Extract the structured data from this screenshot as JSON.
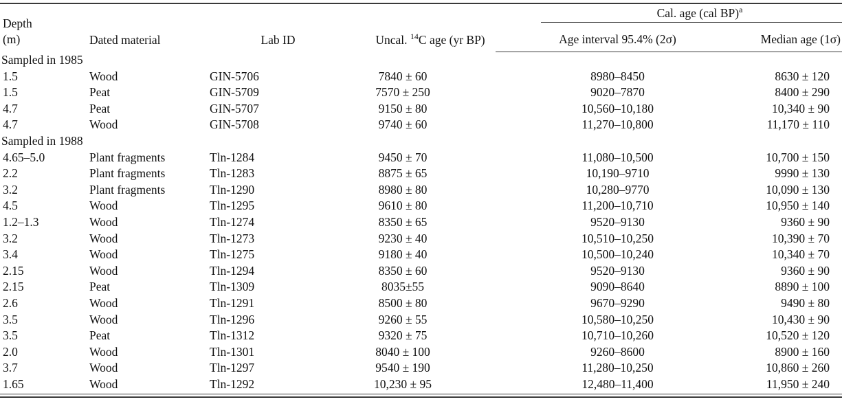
{
  "table": {
    "columns": {
      "depth": {
        "line1": "Depth",
        "line2": "(m)"
      },
      "material": "Dated material",
      "lab_id": "Lab ID",
      "uncal": {
        "pre": "Uncal. ",
        "sup": "14",
        "post": "C age (yr BP)"
      },
      "cal_group": {
        "text": "Cal. age (cal BP)",
        "sup": "a"
      },
      "interval": "Age interval 95.4% (2σ)",
      "median": "Median age (1σ)"
    },
    "sections": [
      {
        "label": "Sampled in 1985",
        "rows": [
          [
            "1.5",
            "Wood",
            "GIN-5706",
            "7840 ± 60",
            "8980–8450",
            "8630 ± 120"
          ],
          [
            "1.5",
            "Peat",
            "GIN-5709",
            "7570 ± 250",
            "9020–7870",
            "8400 ± 290"
          ],
          [
            "4.7",
            "Peat",
            "GIN-5707",
            "9150 ± 80",
            "10,560–10,180",
            "10,340 ± 90"
          ],
          [
            "4.7",
            "Wood",
            "GIN-5708",
            "9740 ± 60",
            "11,270–10,800",
            "11,170 ± 110"
          ]
        ]
      },
      {
        "label": "Sampled in 1988",
        "rows": [
          [
            "4.65–5.0",
            "Plant fragments",
            "Tln-1284",
            "9450 ± 70",
            "11,080–10,500",
            "10,700 ± 150"
          ],
          [
            "2.2",
            "Plant fragments",
            "Tln-1283",
            "8875 ± 65",
            "10,190–9710",
            "9990 ± 130"
          ],
          [
            "3.2",
            "Plant fragments",
            "Tln-1290",
            "8980 ± 80",
            "10,280–9770",
            "10,090 ± 130"
          ],
          [
            "4.5",
            "Wood",
            "Tln-1295",
            "9610 ± 80",
            "11,200–10,710",
            "10,950 ± 140"
          ],
          [
            "1.2–1.3",
            "Wood",
            "Tln-1274",
            "8350 ± 65",
            "9520–9130",
            "9360 ± 90"
          ],
          [
            "3.2",
            "Wood",
            "Tln-1273",
            "9230 ± 40",
            "10,510–10,250",
            "10,390 ± 70"
          ],
          [
            "3.4",
            "Wood",
            "Tln-1275",
            "9180 ± 40",
            "10,500–10,240",
            "10,340 ± 70"
          ],
          [
            "2.15",
            "Wood",
            "Tln-1294",
            "8350 ± 60",
            "9520–9130",
            "9360 ± 90"
          ],
          [
            "2.15",
            "Peat",
            "Tln-1309",
            "8035±55",
            "9090–8640",
            "8890 ± 100"
          ],
          [
            "2.6",
            "Wood",
            "Tln-1291",
            "8500 ± 80",
            "9670–9290",
            "9490 ± 80"
          ],
          [
            "3.5",
            "Wood",
            "Tln-1296",
            "9260 ± 55",
            "10,580–10,250",
            "10,430 ± 90"
          ],
          [
            "3.5",
            "Peat",
            "Tln-1312",
            "9320 ± 75",
            "10,710–10,260",
            "10,520 ± 120"
          ],
          [
            "2.0",
            "Wood",
            "Tln-1301",
            "8040 ± 100",
            "9260–8600",
            "8900 ± 160"
          ],
          [
            "3.7",
            "Wood",
            "Tln-1297",
            "9540 ± 190",
            "11,280–10,250",
            "10,860 ± 260"
          ],
          [
            "1.65",
            "Wood",
            "Tln-1292",
            "10,230 ± 95",
            "12,480–11,400",
            "11,950 ± 240"
          ]
        ]
      }
    ]
  }
}
